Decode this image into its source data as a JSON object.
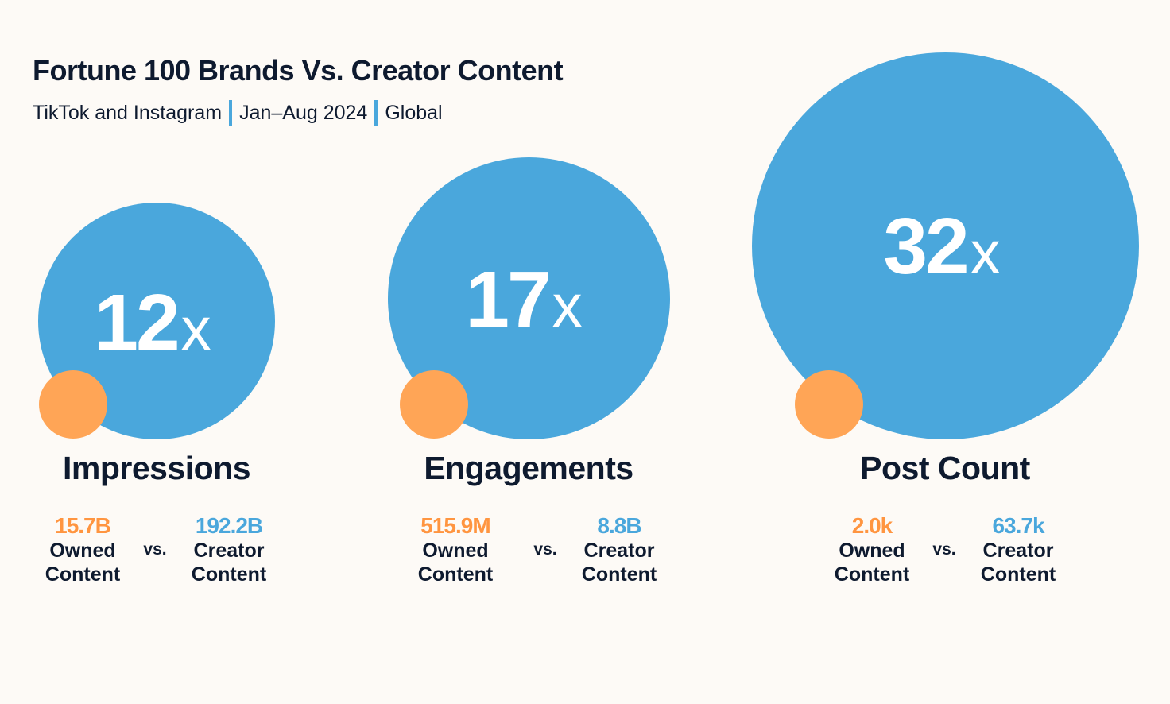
{
  "header": {
    "title": "Fortune 100 Brands Vs. Creator Content",
    "subtitle_parts": [
      "TikTok and Instagram",
      "Jan–Aug 2024",
      "Global"
    ]
  },
  "colors": {
    "creator": "#4aa7dc",
    "owned": "#ffa556",
    "owned_text": "#ff9540",
    "text": "#0e1a2f",
    "background": "#fdfaf6"
  },
  "chart_data": {
    "type": "bubble-comparison",
    "title": "Fortune 100 Brands Vs. Creator Content",
    "series": [
      {
        "name": "Owned Content"
      },
      {
        "name": "Creator Content"
      }
    ],
    "metrics": [
      {
        "label": "Impressions",
        "multiple": "12",
        "multiple_suffix": "x",
        "multiple_value": 12,
        "owned_value": "15.7B",
        "owned_label_1": "Owned",
        "owned_label_2": "Content",
        "vs": "vs.",
        "creator_value": "192.2B",
        "creator_label_1": "Creator",
        "creator_label_2": "Content"
      },
      {
        "label": "Engagements",
        "multiple": "17",
        "multiple_suffix": "x",
        "multiple_value": 17,
        "owned_value": "515.9M",
        "owned_label_1": "Owned",
        "owned_label_2": "Content",
        "vs": "vs.",
        "creator_value": "8.8B",
        "creator_label_1": "Creator",
        "creator_label_2": "Content"
      },
      {
        "label": "Post Count",
        "multiple": "32",
        "multiple_suffix": "x",
        "multiple_value": 32,
        "owned_value": "2.0k",
        "owned_label_1": "Owned",
        "owned_label_2": "Content",
        "vs": "vs.",
        "creator_value": "63.7k",
        "creator_label_1": "Creator",
        "creator_label_2": "Content"
      }
    ]
  }
}
